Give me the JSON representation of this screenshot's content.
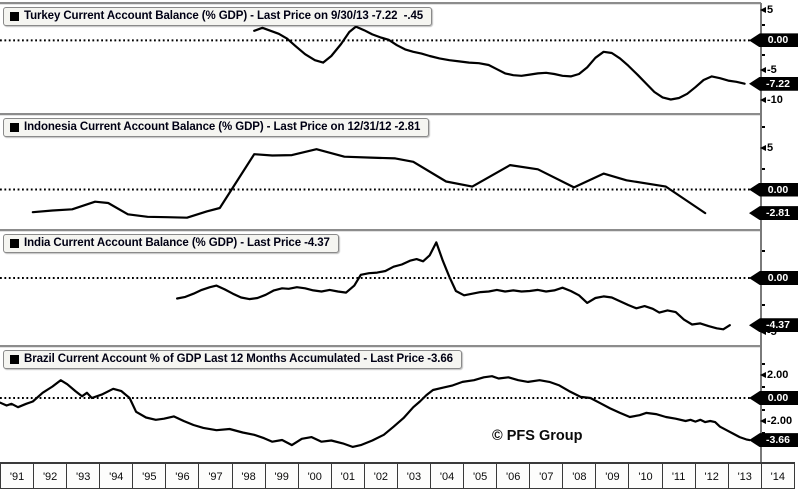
{
  "chart_data": {
    "type": "line",
    "watermark": "© PFS Group",
    "zero_label": "0.00",
    "x_axis": {
      "start": 1991,
      "end": 2014.2,
      "tick_labels": [
        "'91",
        "'92",
        "'93",
        "'94",
        "'95",
        "'96",
        "'97",
        "'98",
        "'99",
        "'00",
        "'01",
        "'02",
        "'03",
        "'04",
        "'05",
        "'06",
        "'07",
        "'08",
        "'09",
        "'10",
        "'11",
        "'12",
        "'13",
        "'14"
      ]
    },
    "panels": [
      {
        "country": "Turkey",
        "legend": "Turkey Current Account Balance (% GDP) - Last Price on 9/30/13 -7.22  -.45",
        "last_price": -7.22,
        "last_price_date": "9/30/13",
        "change": -0.45,
        "ylim": [
          -12.1,
          5.9
        ],
        "ticks": [
          {
            "value": 5,
            "label": "5"
          },
          {
            "value": 2.5
          },
          {
            "value": -2.5
          },
          {
            "value": -5,
            "label": "-5"
          },
          {
            "value": -10,
            "label": "-10"
          }
        ],
        "badges": [
          {
            "value": 0,
            "label": "0.00"
          },
          {
            "value": -7.22,
            "label": "-7.22"
          }
        ],
        "series": [
          [
            1998.75,
            1.6
          ],
          [
            1999.0,
            2.1
          ],
          [
            1999.25,
            1.6
          ],
          [
            1999.5,
            1.1
          ],
          [
            1999.75,
            0.3
          ],
          [
            2000.0,
            -0.9
          ],
          [
            2000.3,
            -2.3
          ],
          [
            2000.6,
            -3.3
          ],
          [
            2000.85,
            -3.7
          ],
          [
            2001.1,
            -2.6
          ],
          [
            2001.4,
            -0.6
          ],
          [
            2001.65,
            1.4
          ],
          [
            2001.85,
            2.3
          ],
          [
            2002.1,
            1.7
          ],
          [
            2002.35,
            1.0
          ],
          [
            2002.6,
            0.5
          ],
          [
            2002.85,
            0.1
          ],
          [
            2003.1,
            -0.8
          ],
          [
            2003.35,
            -1.5
          ],
          [
            2003.6,
            -1.9
          ],
          [
            2003.85,
            -2.2
          ],
          [
            2004.1,
            -2.6
          ],
          [
            2004.4,
            -3.0
          ],
          [
            2004.7,
            -3.3
          ],
          [
            2005.0,
            -3.5
          ],
          [
            2005.3,
            -3.7
          ],
          [
            2005.6,
            -3.8
          ],
          [
            2005.9,
            -4.1
          ],
          [
            2006.15,
            -4.8
          ],
          [
            2006.4,
            -5.5
          ],
          [
            2006.65,
            -5.8
          ],
          [
            2006.9,
            -5.9
          ],
          [
            2007.15,
            -5.7
          ],
          [
            2007.4,
            -5.5
          ],
          [
            2007.65,
            -5.4
          ],
          [
            2007.9,
            -5.6
          ],
          [
            2008.15,
            -5.9
          ],
          [
            2008.4,
            -6.0
          ],
          [
            2008.65,
            -5.6
          ],
          [
            2008.9,
            -4.5
          ],
          [
            2009.15,
            -2.9
          ],
          [
            2009.4,
            -1.9
          ],
          [
            2009.65,
            -2.1
          ],
          [
            2009.9,
            -3.0
          ],
          [
            2010.15,
            -4.2
          ],
          [
            2010.45,
            -5.8
          ],
          [
            2010.7,
            -7.2
          ],
          [
            2010.95,
            -8.6
          ],
          [
            2011.2,
            -9.5
          ],
          [
            2011.45,
            -9.85
          ],
          [
            2011.7,
            -9.6
          ],
          [
            2011.95,
            -8.9
          ],
          [
            2012.2,
            -7.8
          ],
          [
            2012.45,
            -6.6
          ],
          [
            2012.7,
            -6.0
          ],
          [
            2012.95,
            -6.3
          ],
          [
            2013.2,
            -6.7
          ],
          [
            2013.45,
            -6.9
          ],
          [
            2013.7,
            -7.22
          ]
        ]
      },
      {
        "country": "Indonesia",
        "legend": "Indonesia Current Account Balance (% GDP) - Last Price on 12/31/12 -2.81",
        "last_price": -2.81,
        "last_price_date": "12/31/12",
        "ylim": [
          -4.7,
          8.75
        ],
        "ticks": [
          {
            "value": 7.5
          },
          {
            "value": 5,
            "label": "5"
          },
          {
            "value": 2.5
          },
          {
            "value": -2.5
          }
        ],
        "badges": [
          {
            "value": 0,
            "label": "0.00"
          },
          {
            "value": -2.81,
            "label": "-2.81"
          }
        ],
        "series": [
          [
            1992.0,
            -2.7
          ],
          [
            1992.6,
            -2.5
          ],
          [
            1993.2,
            -2.35
          ],
          [
            1993.9,
            -1.45
          ],
          [
            1994.3,
            -1.6
          ],
          [
            1994.9,
            -2.95
          ],
          [
            1995.5,
            -3.25
          ],
          [
            1996.1,
            -3.3
          ],
          [
            1996.7,
            -3.35
          ],
          [
            1997.3,
            -2.6
          ],
          [
            1997.7,
            -2.2
          ],
          [
            1998.75,
            4.2
          ],
          [
            1999.3,
            4.05
          ],
          [
            1999.9,
            4.1
          ],
          [
            2000.65,
            4.8
          ],
          [
            2001.5,
            3.9
          ],
          [
            2002.3,
            3.8
          ],
          [
            2003.05,
            3.7
          ],
          [
            2003.6,
            3.3
          ],
          [
            2004.6,
            0.95
          ],
          [
            2005.4,
            0.35
          ],
          [
            2006.55,
            2.9
          ],
          [
            2007.4,
            2.4
          ],
          [
            2008.5,
            0.25
          ],
          [
            2009.4,
            1.9
          ],
          [
            2010.1,
            1.1
          ],
          [
            2011.3,
            0.35
          ],
          [
            2012.5,
            -2.81
          ]
        ]
      },
      {
        "country": "India",
        "legend": "India Current Account Balance (% GDP) - Last Price -4.37",
        "last_price": -4.37,
        "ylim": [
          -6.2,
          4.26
        ],
        "ticks": [
          {
            "value": 2.5
          },
          {
            "value": -2.5
          },
          {
            "value": -5,
            "label": "-5"
          }
        ],
        "badges": [
          {
            "value": 0,
            "label": "0.00"
          },
          {
            "value": -4.37,
            "label": "-4.37"
          }
        ],
        "series": [
          [
            1996.4,
            -1.9
          ],
          [
            1996.65,
            -1.75
          ],
          [
            1996.9,
            -1.45
          ],
          [
            1997.15,
            -1.1
          ],
          [
            1997.4,
            -0.85
          ],
          [
            1997.6,
            -0.7
          ],
          [
            1997.85,
            -1.05
          ],
          [
            1998.1,
            -1.45
          ],
          [
            1998.35,
            -1.8
          ],
          [
            1998.6,
            -1.95
          ],
          [
            1998.85,
            -1.85
          ],
          [
            1999.1,
            -1.55
          ],
          [
            1999.35,
            -1.15
          ],
          [
            1999.6,
            -0.95
          ],
          [
            1999.8,
            -1.0
          ],
          [
            2000.05,
            -0.85
          ],
          [
            2000.3,
            -0.95
          ],
          [
            2000.55,
            -1.15
          ],
          [
            2000.8,
            -1.25
          ],
          [
            2001.05,
            -1.1
          ],
          [
            2001.3,
            -1.25
          ],
          [
            2001.55,
            -1.35
          ],
          [
            2001.8,
            -0.7
          ],
          [
            2002.0,
            0.3
          ],
          [
            2002.25,
            0.45
          ],
          [
            2002.5,
            0.5
          ],
          [
            2002.75,
            0.65
          ],
          [
            2003.0,
            1.05
          ],
          [
            2003.25,
            1.25
          ],
          [
            2003.5,
            1.6
          ],
          [
            2003.7,
            1.75
          ],
          [
            2003.9,
            1.55
          ],
          [
            2004.1,
            2.1
          ],
          [
            2004.3,
            3.3
          ],
          [
            2004.5,
            1.6
          ],
          [
            2004.7,
            0.1
          ],
          [
            2004.9,
            -1.2
          ],
          [
            2005.15,
            -1.6
          ],
          [
            2005.4,
            -1.45
          ],
          [
            2005.65,
            -1.3
          ],
          [
            2005.9,
            -1.25
          ],
          [
            2006.15,
            -1.1
          ],
          [
            2006.4,
            -1.25
          ],
          [
            2006.65,
            -1.15
          ],
          [
            2006.9,
            -1.25
          ],
          [
            2007.15,
            -1.2
          ],
          [
            2007.4,
            -1.1
          ],
          [
            2007.65,
            -1.25
          ],
          [
            2007.9,
            -1.15
          ],
          [
            2008.15,
            -0.9
          ],
          [
            2008.4,
            -1.2
          ],
          [
            2008.65,
            -1.6
          ],
          [
            2008.9,
            -2.3
          ],
          [
            2009.15,
            -1.85
          ],
          [
            2009.4,
            -1.7
          ],
          [
            2009.65,
            -1.8
          ],
          [
            2009.9,
            -2.15
          ],
          [
            2010.15,
            -2.5
          ],
          [
            2010.4,
            -2.8
          ],
          [
            2010.65,
            -2.6
          ],
          [
            2010.9,
            -2.85
          ],
          [
            2011.1,
            -3.2
          ],
          [
            2011.35,
            -3.0
          ],
          [
            2011.6,
            -3.15
          ],
          [
            2011.85,
            -3.85
          ],
          [
            2012.1,
            -4.3
          ],
          [
            2012.35,
            -4.2
          ],
          [
            2012.6,
            -4.45
          ],
          [
            2012.85,
            -4.65
          ],
          [
            2013.05,
            -4.75
          ],
          [
            2013.25,
            -4.37
          ]
        ]
      },
      {
        "country": "Brazil",
        "legend": "Brazil Current Account % of GDP Last 12 Months Accumulated - Last Price -3.66",
        "last_price": -3.66,
        "ylim": [
          -5.48,
          4.35
        ],
        "ticks": [
          {
            "value": 3
          },
          {
            "value": 2,
            "label": "2.00"
          },
          {
            "value": 1
          },
          {
            "value": -1
          },
          {
            "value": -2,
            "label": "-2.00"
          },
          {
            "value": -3
          }
        ],
        "badges": [
          {
            "value": 0,
            "label": "0.00"
          },
          {
            "value": -3.66,
            "label": "-3.66"
          }
        ],
        "series": [
          [
            1991.0,
            -0.4
          ],
          [
            1991.2,
            -0.65
          ],
          [
            1991.35,
            -0.5
          ],
          [
            1991.55,
            -0.8
          ],
          [
            1991.8,
            -0.5
          ],
          [
            1992.0,
            -0.3
          ],
          [
            1992.3,
            0.45
          ],
          [
            1992.6,
            1.0
          ],
          [
            1992.85,
            1.55
          ],
          [
            1993.05,
            1.2
          ],
          [
            1993.3,
            0.6
          ],
          [
            1993.5,
            0.15
          ],
          [
            1993.65,
            0.45
          ],
          [
            1993.8,
            0.0
          ],
          [
            1994.1,
            0.3
          ],
          [
            1994.45,
            0.8
          ],
          [
            1994.7,
            0.6
          ],
          [
            1994.95,
            0.0
          ],
          [
            1995.15,
            -1.2
          ],
          [
            1995.45,
            -1.7
          ],
          [
            1995.75,
            -1.9
          ],
          [
            1996.0,
            -1.8
          ],
          [
            1996.3,
            -1.6
          ],
          [
            1996.6,
            -2.0
          ],
          [
            1996.9,
            -2.35
          ],
          [
            1997.2,
            -2.6
          ],
          [
            1997.6,
            -2.8
          ],
          [
            1998.0,
            -2.7
          ],
          [
            1998.4,
            -3.0
          ],
          [
            1998.75,
            -3.2
          ],
          [
            1999.05,
            -3.5
          ],
          [
            1999.3,
            -3.8
          ],
          [
            1999.6,
            -3.65
          ],
          [
            1999.9,
            -4.1
          ],
          [
            2000.2,
            -3.55
          ],
          [
            2000.5,
            -3.4
          ],
          [
            2000.8,
            -3.8
          ],
          [
            2001.1,
            -3.7
          ],
          [
            2001.45,
            -3.95
          ],
          [
            2001.75,
            -4.25
          ],
          [
            2002.0,
            -4.1
          ],
          [
            2002.35,
            -3.7
          ],
          [
            2002.7,
            -3.2
          ],
          [
            2003.0,
            -2.5
          ],
          [
            2003.3,
            -1.75
          ],
          [
            2003.6,
            -0.8
          ],
          [
            2003.8,
            -0.3
          ],
          [
            2004.0,
            0.25
          ],
          [
            2004.2,
            0.7
          ],
          [
            2004.5,
            0.9
          ],
          [
            2004.8,
            1.1
          ],
          [
            2005.1,
            1.4
          ],
          [
            2005.45,
            1.55
          ],
          [
            2005.75,
            1.8
          ],
          [
            2006.0,
            1.9
          ],
          [
            2006.2,
            1.7
          ],
          [
            2006.5,
            1.8
          ],
          [
            2006.8,
            1.55
          ],
          [
            2007.1,
            1.4
          ],
          [
            2007.45,
            1.55
          ],
          [
            2007.75,
            1.4
          ],
          [
            2008.05,
            1.1
          ],
          [
            2008.35,
            0.6
          ],
          [
            2008.7,
            0.1
          ],
          [
            2009.0,
            0.0
          ],
          [
            2009.3,
            -0.45
          ],
          [
            2009.6,
            -0.9
          ],
          [
            2009.9,
            -1.3
          ],
          [
            2010.2,
            -1.65
          ],
          [
            2010.5,
            -1.5
          ],
          [
            2010.7,
            -1.3
          ],
          [
            2011.0,
            -1.4
          ],
          [
            2011.3,
            -1.65
          ],
          [
            2011.6,
            -1.8
          ],
          [
            2011.9,
            -2.0
          ],
          [
            2012.05,
            -1.9
          ],
          [
            2012.2,
            -2.05
          ],
          [
            2012.35,
            -1.9
          ],
          [
            2012.5,
            -2.1
          ],
          [
            2012.65,
            -2.0
          ],
          [
            2012.8,
            -2.1
          ],
          [
            2012.95,
            -2.5
          ],
          [
            2013.15,
            -2.8
          ],
          [
            2013.35,
            -3.1
          ],
          [
            2013.55,
            -3.4
          ],
          [
            2013.75,
            -3.6
          ],
          [
            2013.85,
            -3.66
          ]
        ]
      }
    ]
  }
}
